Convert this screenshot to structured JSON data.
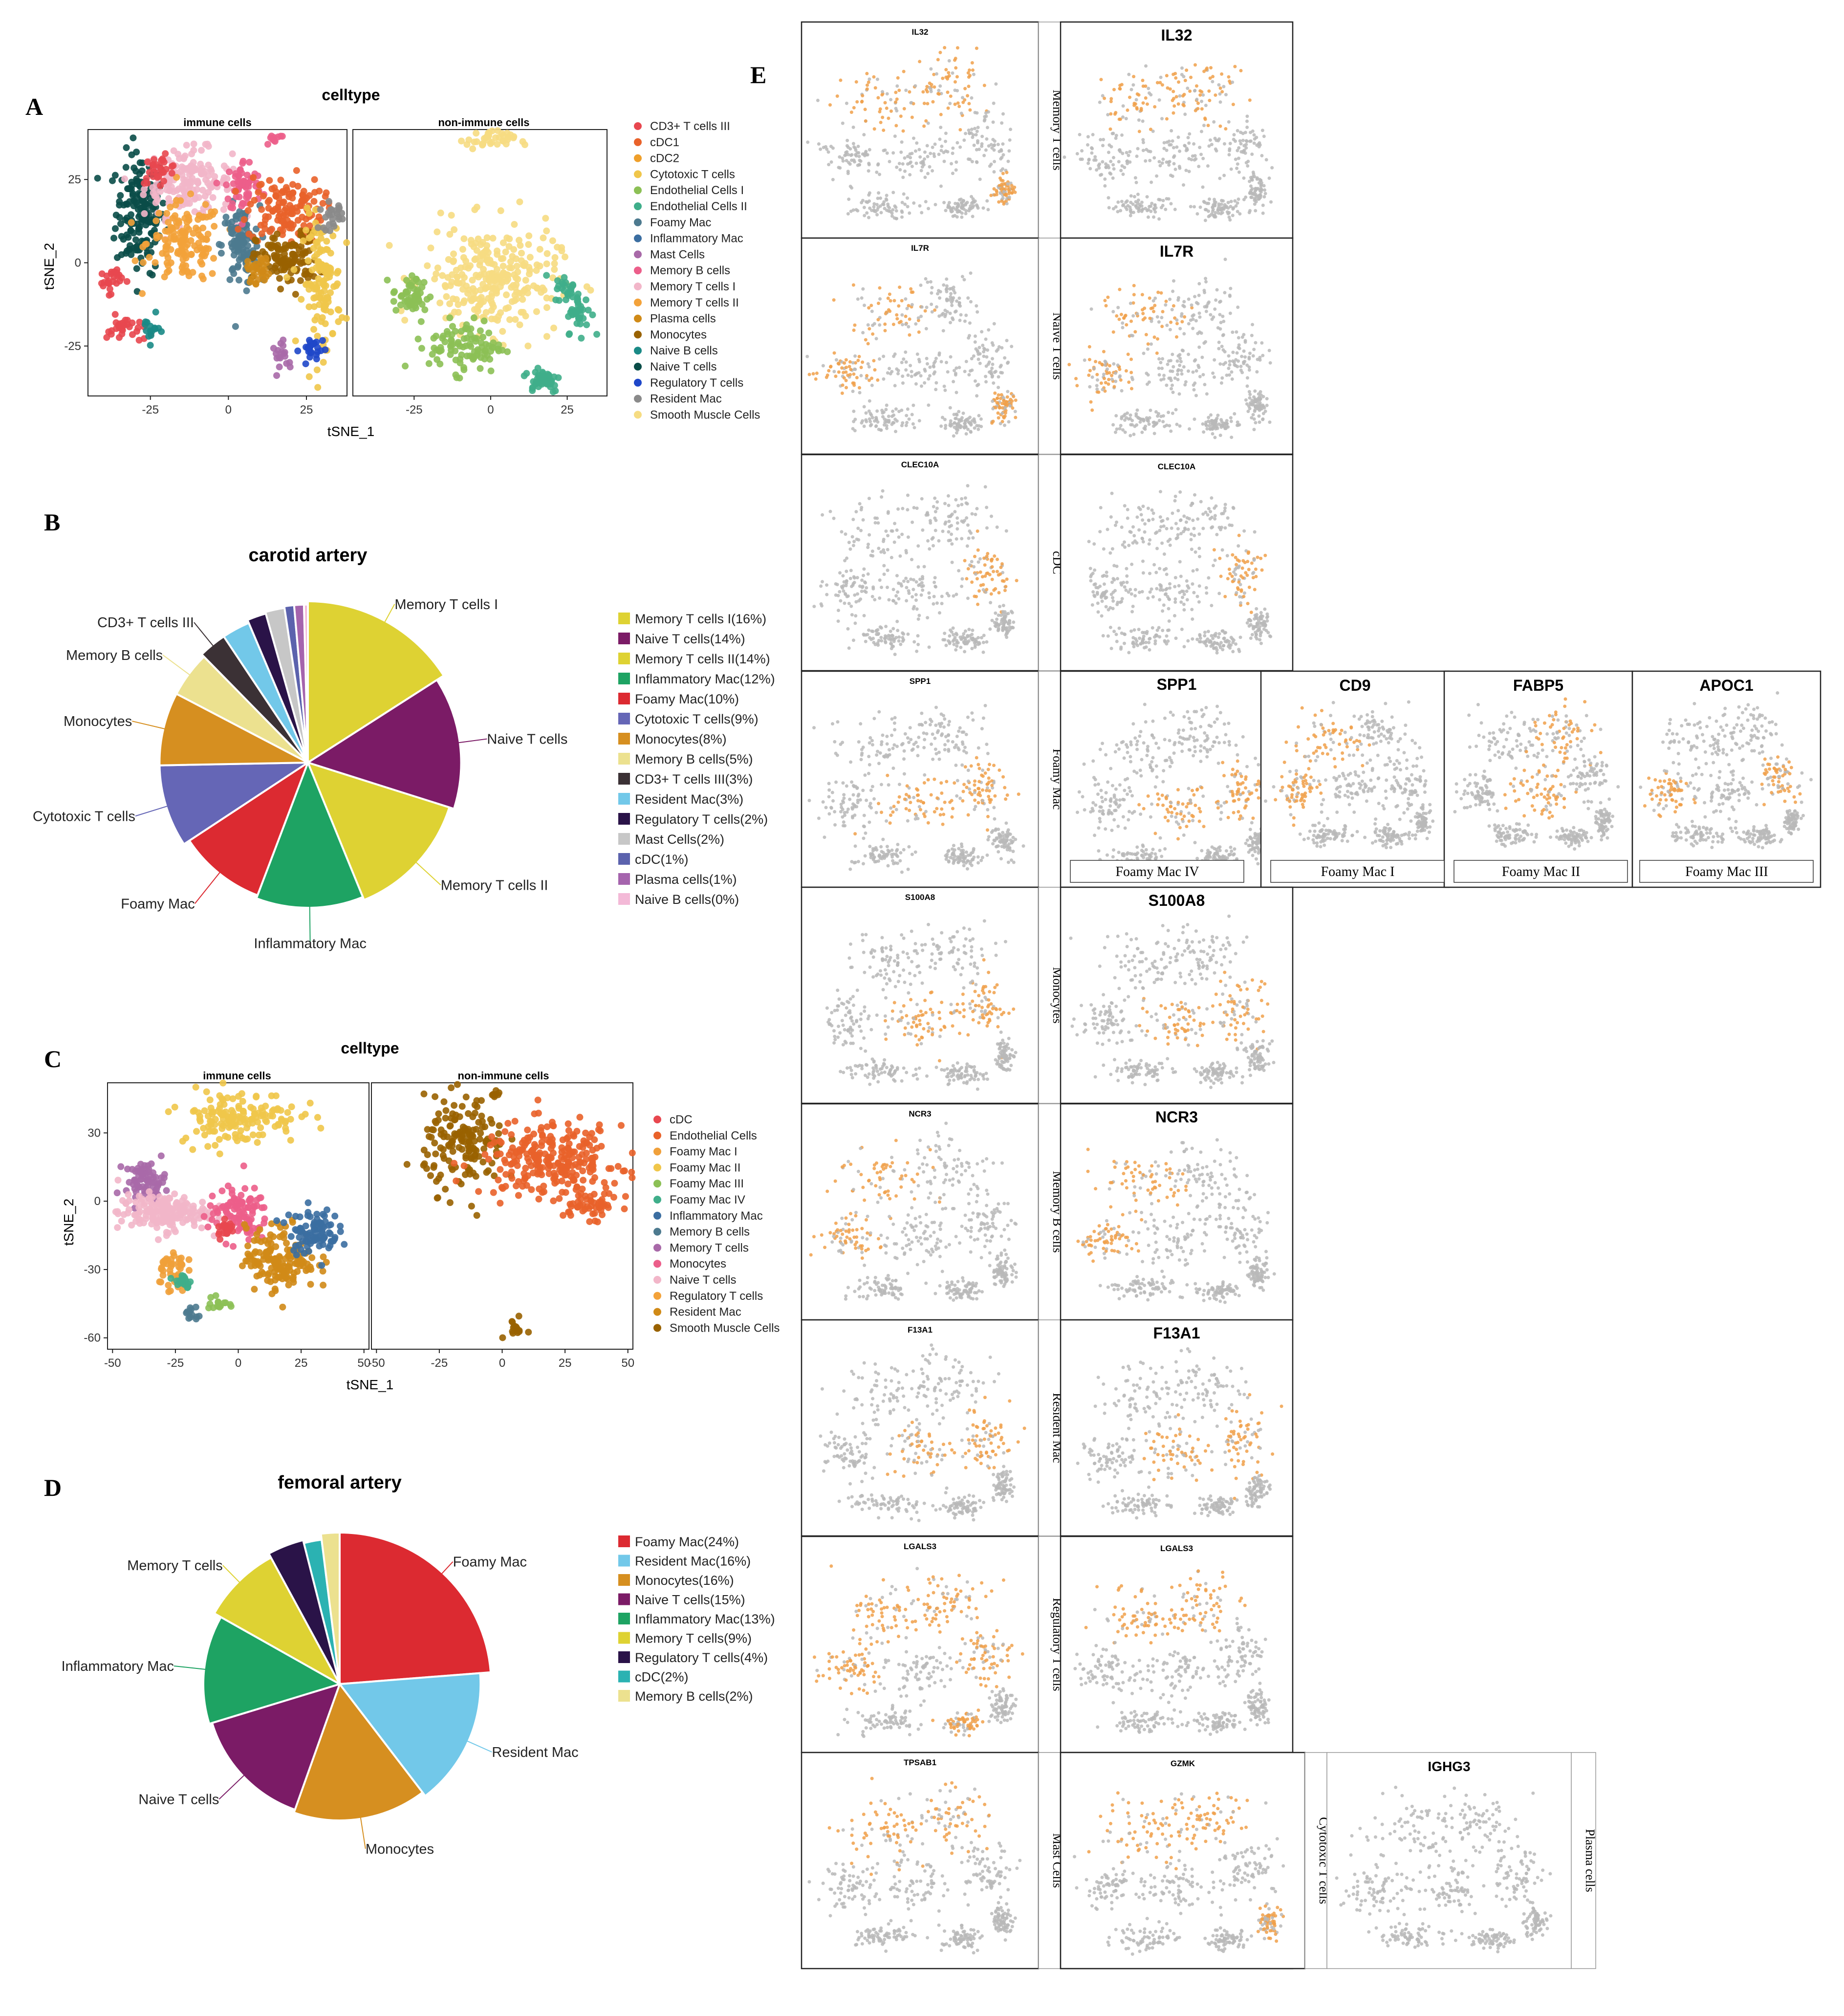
{
  "panel_letters": {
    "a": "A",
    "b": "B",
    "c": "C",
    "d": "D",
    "e": "E"
  },
  "colors": {
    "CD3+ T cells III": "#e8474f",
    "cDC1": "#e9622a",
    "cDC2": "#ef9f2a",
    "Cytotoxic T cells": "#f0c64a",
    "Endothelial Cells I": "#8cc055",
    "Endothelial Cells II": "#3fae8a",
    "Foamy Mac": "#4d7a8f",
    "Inflammatory Mac": "#3b6ea1",
    "Mast Cells": "#a869a8",
    "Memory B cells": "#ec5e8a",
    "Memory T cells I": "#f2b6c9",
    "Memory T cells II": "#f3a23a",
    "Plasma cells": "#d08a17",
    "Monocytes": "#996200",
    "Naive B cells": "#1a8a86",
    "Naive T cells": "#0a4d48",
    "Regulatory T cells": "#1f47c9",
    "Resident Mac": "#8a8a8a",
    "Smooth Muscle Cells": "#f6dc82"
  },
  "chart_data": [
    {
      "panel": "A",
      "type": "scatter",
      "title": "celltype",
      "xlabel": "tSNE_1",
      "ylabel": "tSNE_2",
      "facets": [
        "immune cells",
        "non-immune cells"
      ],
      "xticks": [
        -25,
        0,
        25
      ],
      "yticks": [
        -25,
        0,
        25
      ],
      "xlim": [
        -45,
        38
      ],
      "ylim": [
        -40,
        40
      ],
      "legend_position": "right",
      "legend": [
        "CD3+ T cells III",
        "cDC1",
        "cDC2",
        "Cytotoxic T cells",
        "Endothelial Cells I",
        "Endothelial Cells II",
        "Foamy Mac",
        "Inflammatory Mac",
        "Mast Cells",
        "Memory B cells",
        "Memory T cells I",
        "Memory T cells II",
        "Plasma cells",
        "Monocytes",
        "Naive B cells",
        "Naive T cells",
        "Regulatory T cells",
        "Resident Mac",
        "Smooth Muscle Cells"
      ],
      "clusters": [
        {
          "facet": 0,
          "type": "Naive T cells",
          "x": -28,
          "y": 15,
          "sx": 4,
          "sy": 9,
          "n": 180
        },
        {
          "facet": 0,
          "type": "Memory T cells I",
          "x": -13,
          "y": 24,
          "sx": 7,
          "sy": 5,
          "n": 170
        },
        {
          "facet": 0,
          "type": "Memory T cells II",
          "x": -14,
          "y": 6,
          "sx": 6,
          "sy": 6,
          "n": 140
        },
        {
          "facet": 0,
          "type": "CD3+ T cells III",
          "x": -22,
          "y": 28,
          "sx": 3,
          "sy": 2,
          "n": 30
        },
        {
          "facet": 0,
          "type": "Foamy Mac",
          "x": 4,
          "y": 5,
          "sx": 3,
          "sy": 6,
          "n": 110
        },
        {
          "facet": 0,
          "type": "Memory B cells",
          "x": 5,
          "y": 23,
          "sx": 3,
          "sy": 4,
          "n": 60
        },
        {
          "facet": 0,
          "type": "cDC1",
          "x": 18,
          "y": 16,
          "sx": 6,
          "sy": 5,
          "n": 130
        },
        {
          "facet": 0,
          "type": "Monocytes",
          "x": 19,
          "y": 1,
          "sx": 5,
          "sy": 4,
          "n": 110
        },
        {
          "facet": 0,
          "type": "Plasma cells",
          "x": 10,
          "y": -2,
          "sx": 2,
          "sy": 2,
          "n": 30
        },
        {
          "facet": 0,
          "type": "Cytotoxic T cells",
          "x": 30,
          "y": -6,
          "sx": 3,
          "sy": 10,
          "n": 130
        },
        {
          "facet": 0,
          "type": "Resident Mac",
          "x": 33,
          "y": 14,
          "sx": 2,
          "sy": 2,
          "n": 25
        },
        {
          "facet": 0,
          "type": "Mast Cells",
          "x": 18,
          "y": -28,
          "sx": 2,
          "sy": 2,
          "n": 18
        },
        {
          "facet": 0,
          "type": "Regulatory T cells",
          "x": 27,
          "y": -26,
          "sx": 2,
          "sy": 2,
          "n": 25
        },
        {
          "facet": 0,
          "type": "CD3+ T cells III",
          "x": -38,
          "y": -5,
          "sx": 2,
          "sy": 2,
          "n": 25
        },
        {
          "facet": 0,
          "type": "CD3+ T cells III",
          "x": -33,
          "y": -20,
          "sx": 3,
          "sy": 2,
          "n": 30
        },
        {
          "facet": 0,
          "type": "Naive B cells",
          "x": -25,
          "y": -20,
          "sx": 1.5,
          "sy": 2,
          "n": 15
        },
        {
          "facet": 0,
          "type": "Memory B cells",
          "x": 15,
          "y": 37,
          "sx": 2,
          "sy": 1,
          "n": 10
        },
        {
          "facet": 1,
          "type": "Smooth Muscle Cells",
          "x": 0,
          "y": -5,
          "sx": 11,
          "sy": 8,
          "n": 280
        },
        {
          "facet": 1,
          "type": "Smooth Muscle Cells",
          "x": 0,
          "y": 37,
          "sx": 4,
          "sy": 1.5,
          "n": 40
        },
        {
          "facet": 1,
          "type": "Endothelial Cells I",
          "x": -26,
          "y": -10,
          "sx": 3,
          "sy": 3,
          "n": 50
        },
        {
          "facet": 1,
          "type": "Endothelial Cells I",
          "x": -8,
          "y": -25,
          "sx": 6,
          "sy": 4,
          "n": 100
        },
        {
          "facet": 1,
          "type": "Endothelial Cells II",
          "x": 17,
          "y": -35,
          "sx": 3,
          "sy": 2,
          "n": 45
        },
        {
          "facet": 1,
          "type": "Endothelial Cells II",
          "x": 29,
          "y": -15,
          "sx": 2,
          "sy": 3,
          "n": 35
        },
        {
          "facet": 1,
          "type": "Endothelial Cells II",
          "x": 25,
          "y": -8,
          "sx": 2,
          "sy": 2,
          "n": 25
        }
      ]
    },
    {
      "panel": "B",
      "type": "pie",
      "title": "carotid artery",
      "legend_position": "right",
      "slices": [
        {
          "label": "Memory T cells I",
          "legend": "Memory T cells I(16%)",
          "value": 16,
          "color": "#ded233",
          "r": 1.0
        },
        {
          "label": "Naive T cells",
          "legend": "Naive T cells(14%)",
          "value": 14,
          "color": "#7b1b66",
          "r": 0.95
        },
        {
          "label": "Memory T cells II",
          "legend": "Memory T cells II(14%)",
          "value": 14,
          "color": "#ded233",
          "r": 0.92
        },
        {
          "label": "Inflammatory Mac",
          "legend": "Inflammatory Mac(12%)",
          "value": 12,
          "color": "#1ea363",
          "r": 0.9
        },
        {
          "label": "Foamy Mac",
          "legend": "Foamy Mac(10%)",
          "value": 10,
          "color": "#dc2a31",
          "r": 0.88
        },
        {
          "label": "Cytotoxic T cells",
          "legend": "Cytotoxic T cells(9%)",
          "value": 9,
          "color": "#6566b6",
          "r": 0.92
        },
        {
          "label": "Monocytes",
          "legend": "Monocytes(8%)",
          "value": 8,
          "color": "#d68f20",
          "r": 0.92
        },
        {
          "label": "Memory B cells",
          "legend": "Memory B cells(5%)",
          "value": 5,
          "color": "#ece18f",
          "r": 0.92
        },
        {
          "label": "CD3+ T cells III",
          "legend": "CD3+ T cells III(3%)",
          "value": 3,
          "color": "#3b3135",
          "r": 0.94
        },
        {
          "label": "",
          "legend": "Resident Mac(3%)",
          "value": 3,
          "color": "#72c8e9",
          "r": 0.94
        },
        {
          "label": "",
          "legend": "Regulatory T cells(2%)",
          "value": 2,
          "color": "#2a1348",
          "r": 0.96
        },
        {
          "label": "",
          "legend": "Mast Cells(2%)",
          "value": 2,
          "color": "#c7c7c7",
          "r": 0.97
        },
        {
          "label": "",
          "legend": "cDC(1%)",
          "value": 1,
          "color": "#5b62ad",
          "r": 0.98
        },
        {
          "label": "",
          "legend": "Plasma cells(1%)",
          "value": 1,
          "color": "#a564ad",
          "r": 0.98
        },
        {
          "label": "",
          "legend": "Naive B cells(0%)",
          "value": 0.4,
          "color": "#f3b9d7",
          "r": 0.98
        }
      ]
    },
    {
      "panel": "C",
      "type": "scatter",
      "title": "celltype",
      "xlabel": "tSNE_1",
      "ylabel": "tSNE_2",
      "facets": [
        "immune cells",
        "non-immune cells"
      ],
      "xticks": [
        -50,
        -25,
        0,
        25,
        50
      ],
      "yticks": [
        -60,
        -30,
        0,
        30
      ],
      "xlim": [
        -52,
        52
      ],
      "ylim": [
        -65,
        52
      ],
      "legend_position": "right",
      "legend": [
        "cDC",
        "Endothelial Cells",
        "Foamy Mac I",
        "Foamy Mac II",
        "Foamy Mac III",
        "Foamy Mac IV",
        "Inflammatory Mac",
        "Memory B cells",
        "Memory T cells",
        "Monocytes",
        "Naive T cells",
        "Regulatory T cells",
        "Resident Mac",
        "Smooth Muscle Cells"
      ],
      "legend_colors": [
        "#e8474f",
        "#e9622a",
        "#f0a03a",
        "#f0c64a",
        "#8cc055",
        "#3fae8a",
        "#3b6ea1",
        "#4d7a8f",
        "#a869a8",
        "#ec5e8a",
        "#f2b6c9",
        "#f3a23a",
        "#d08a17",
        "#996200"
      ],
      "clusters": [
        {
          "facet": 0,
          "type": "Foamy Mac II",
          "x": 0,
          "y": 37,
          "sx": 12,
          "sy": 6,
          "n": 150
        },
        {
          "facet": 0,
          "type": "Memory T cells",
          "x": -37,
          "y": 9,
          "sx": 4,
          "sy": 4,
          "n": 70
        },
        {
          "facet": 0,
          "type": "Naive T cells",
          "x": -30,
          "y": -5,
          "sx": 9,
          "sy": 4,
          "n": 180
        },
        {
          "facet": 0,
          "type": "Monocytes",
          "x": 0,
          "y": -6,
          "sx": 6,
          "sy": 6,
          "n": 110
        },
        {
          "facet": 0,
          "type": "Resident Mac",
          "x": 17,
          "y": -25,
          "sx": 7,
          "sy": 7,
          "n": 160
        },
        {
          "facet": 0,
          "type": "Inflammatory Mac",
          "x": 30,
          "y": -13,
          "sx": 5,
          "sy": 5,
          "n": 90
        },
        {
          "facet": 0,
          "type": "Foamy Mac I",
          "x": -27,
          "y": -30,
          "sx": 3,
          "sy": 5,
          "n": 40
        },
        {
          "facet": 0,
          "type": "Foamy Mac IV",
          "x": -22,
          "y": -35,
          "sx": 2,
          "sy": 2,
          "n": 18
        },
        {
          "facet": 0,
          "type": "Foamy Mac III",
          "x": -8,
          "y": -45,
          "sx": 2,
          "sy": 2,
          "n": 15
        },
        {
          "facet": 0,
          "type": "Memory B cells",
          "x": -18,
          "y": -50,
          "sx": 1.5,
          "sy": 2,
          "n": 12
        },
        {
          "facet": 0,
          "type": "cDC",
          "x": -5,
          "y": -12,
          "sx": 2,
          "sy": 2,
          "n": 20
        },
        {
          "facet": 1,
          "type": "Smooth Muscle Cells",
          "x": -15,
          "y": 25,
          "sx": 8,
          "sy": 10,
          "n": 160
        },
        {
          "facet": 1,
          "type": "Endothelial Cells",
          "x": 20,
          "y": 18,
          "sx": 14,
          "sy": 8,
          "n": 260
        },
        {
          "facet": 1,
          "type": "Endothelial Cells",
          "x": 35,
          "y": -2,
          "sx": 6,
          "sy": 3,
          "n": 50
        },
        {
          "facet": 1,
          "type": "Smooth Muscle Cells",
          "x": 5,
          "y": -56,
          "sx": 2,
          "sy": 2,
          "n": 15
        },
        {
          "facet": 1,
          "type": "Smooth Muscle Cells",
          "x": -3,
          "y": 47,
          "sx": 1,
          "sy": 1,
          "n": 8
        }
      ]
    },
    {
      "panel": "D",
      "type": "pie",
      "title": "femoral artery",
      "legend_position": "right",
      "slices": [
        {
          "label": "Foamy Mac",
          "legend": "Foamy Mac(24%)",
          "value": 24,
          "color": "#dc2a31",
          "r": 1.0
        },
        {
          "label": "Resident Mac",
          "legend": "Resident Mac(16%)",
          "value": 16,
          "color": "#72c8e9",
          "r": 0.93
        },
        {
          "label": "Monocytes",
          "legend": "Monocytes(16%)",
          "value": 16,
          "color": "#d68f20",
          "r": 0.9
        },
        {
          "label": "Naive T cells",
          "legend": "Naive T cells(15%)",
          "value": 15,
          "color": "#7b1b66",
          "r": 0.88
        },
        {
          "label": "Inflammatory Mac",
          "legend": "Inflammatory Mac(13%)",
          "value": 13,
          "color": "#1ea363",
          "r": 0.9
        },
        {
          "label": "Memory T cells",
          "legend": "Memory T cells(9%)",
          "value": 9,
          "color": "#ded233",
          "r": 0.95
        },
        {
          "label": "",
          "legend": "Regulatory T cells(4%)",
          "value": 4,
          "color": "#2a1348",
          "r": 0.98
        },
        {
          "label": "",
          "legend": "cDC(2%)",
          "value": 2,
          "color": "#2bb2b2",
          "r": 0.96
        },
        {
          "label": "",
          "legend": "Memory B cells(2%)",
          "value": 2,
          "color": "#ece18f",
          "r": 1.0
        }
      ]
    }
  ],
  "panel_e": {
    "rows": [
      {
        "category": "Memory T cells",
        "markers": [
          "IL32",
          "IL32"
        ]
      },
      {
        "category": "Naive T cells",
        "markers": [
          "IL7R",
          "IL7R"
        ]
      },
      {
        "category": "cDC",
        "markers": [
          "CLEC10A",
          "CLEC10A"
        ]
      },
      {
        "category": "Foamy Mac",
        "markers": [
          "SPP1",
          "SPP1",
          "CD9",
          "FABP5",
          "APOC1"
        ],
        "subtypes": [
          "Foamy Mac IV",
          "Foamy Mac I",
          "Foamy Mac II",
          "Foamy Mac III"
        ]
      },
      {
        "category": "Monocytes",
        "markers": [
          "S100A8",
          "S100A8"
        ]
      },
      {
        "category": "Memory B cells",
        "markers": [
          "NCR3",
          "NCR3"
        ]
      },
      {
        "category": "Resident Mac",
        "markers": [
          "F13A1",
          "F13A1"
        ]
      },
      {
        "category": "Regulatory T cells",
        "markers": [
          "LGALS3",
          "LGALS3"
        ]
      },
      {
        "category": "Mast Cells",
        "markers": [
          "TPSAB1",
          "GZMK",
          "IGHG3"
        ],
        "extra_categories": [
          "Cytotoxic T cells",
          "Plasma cells"
        ]
      }
    ]
  }
}
